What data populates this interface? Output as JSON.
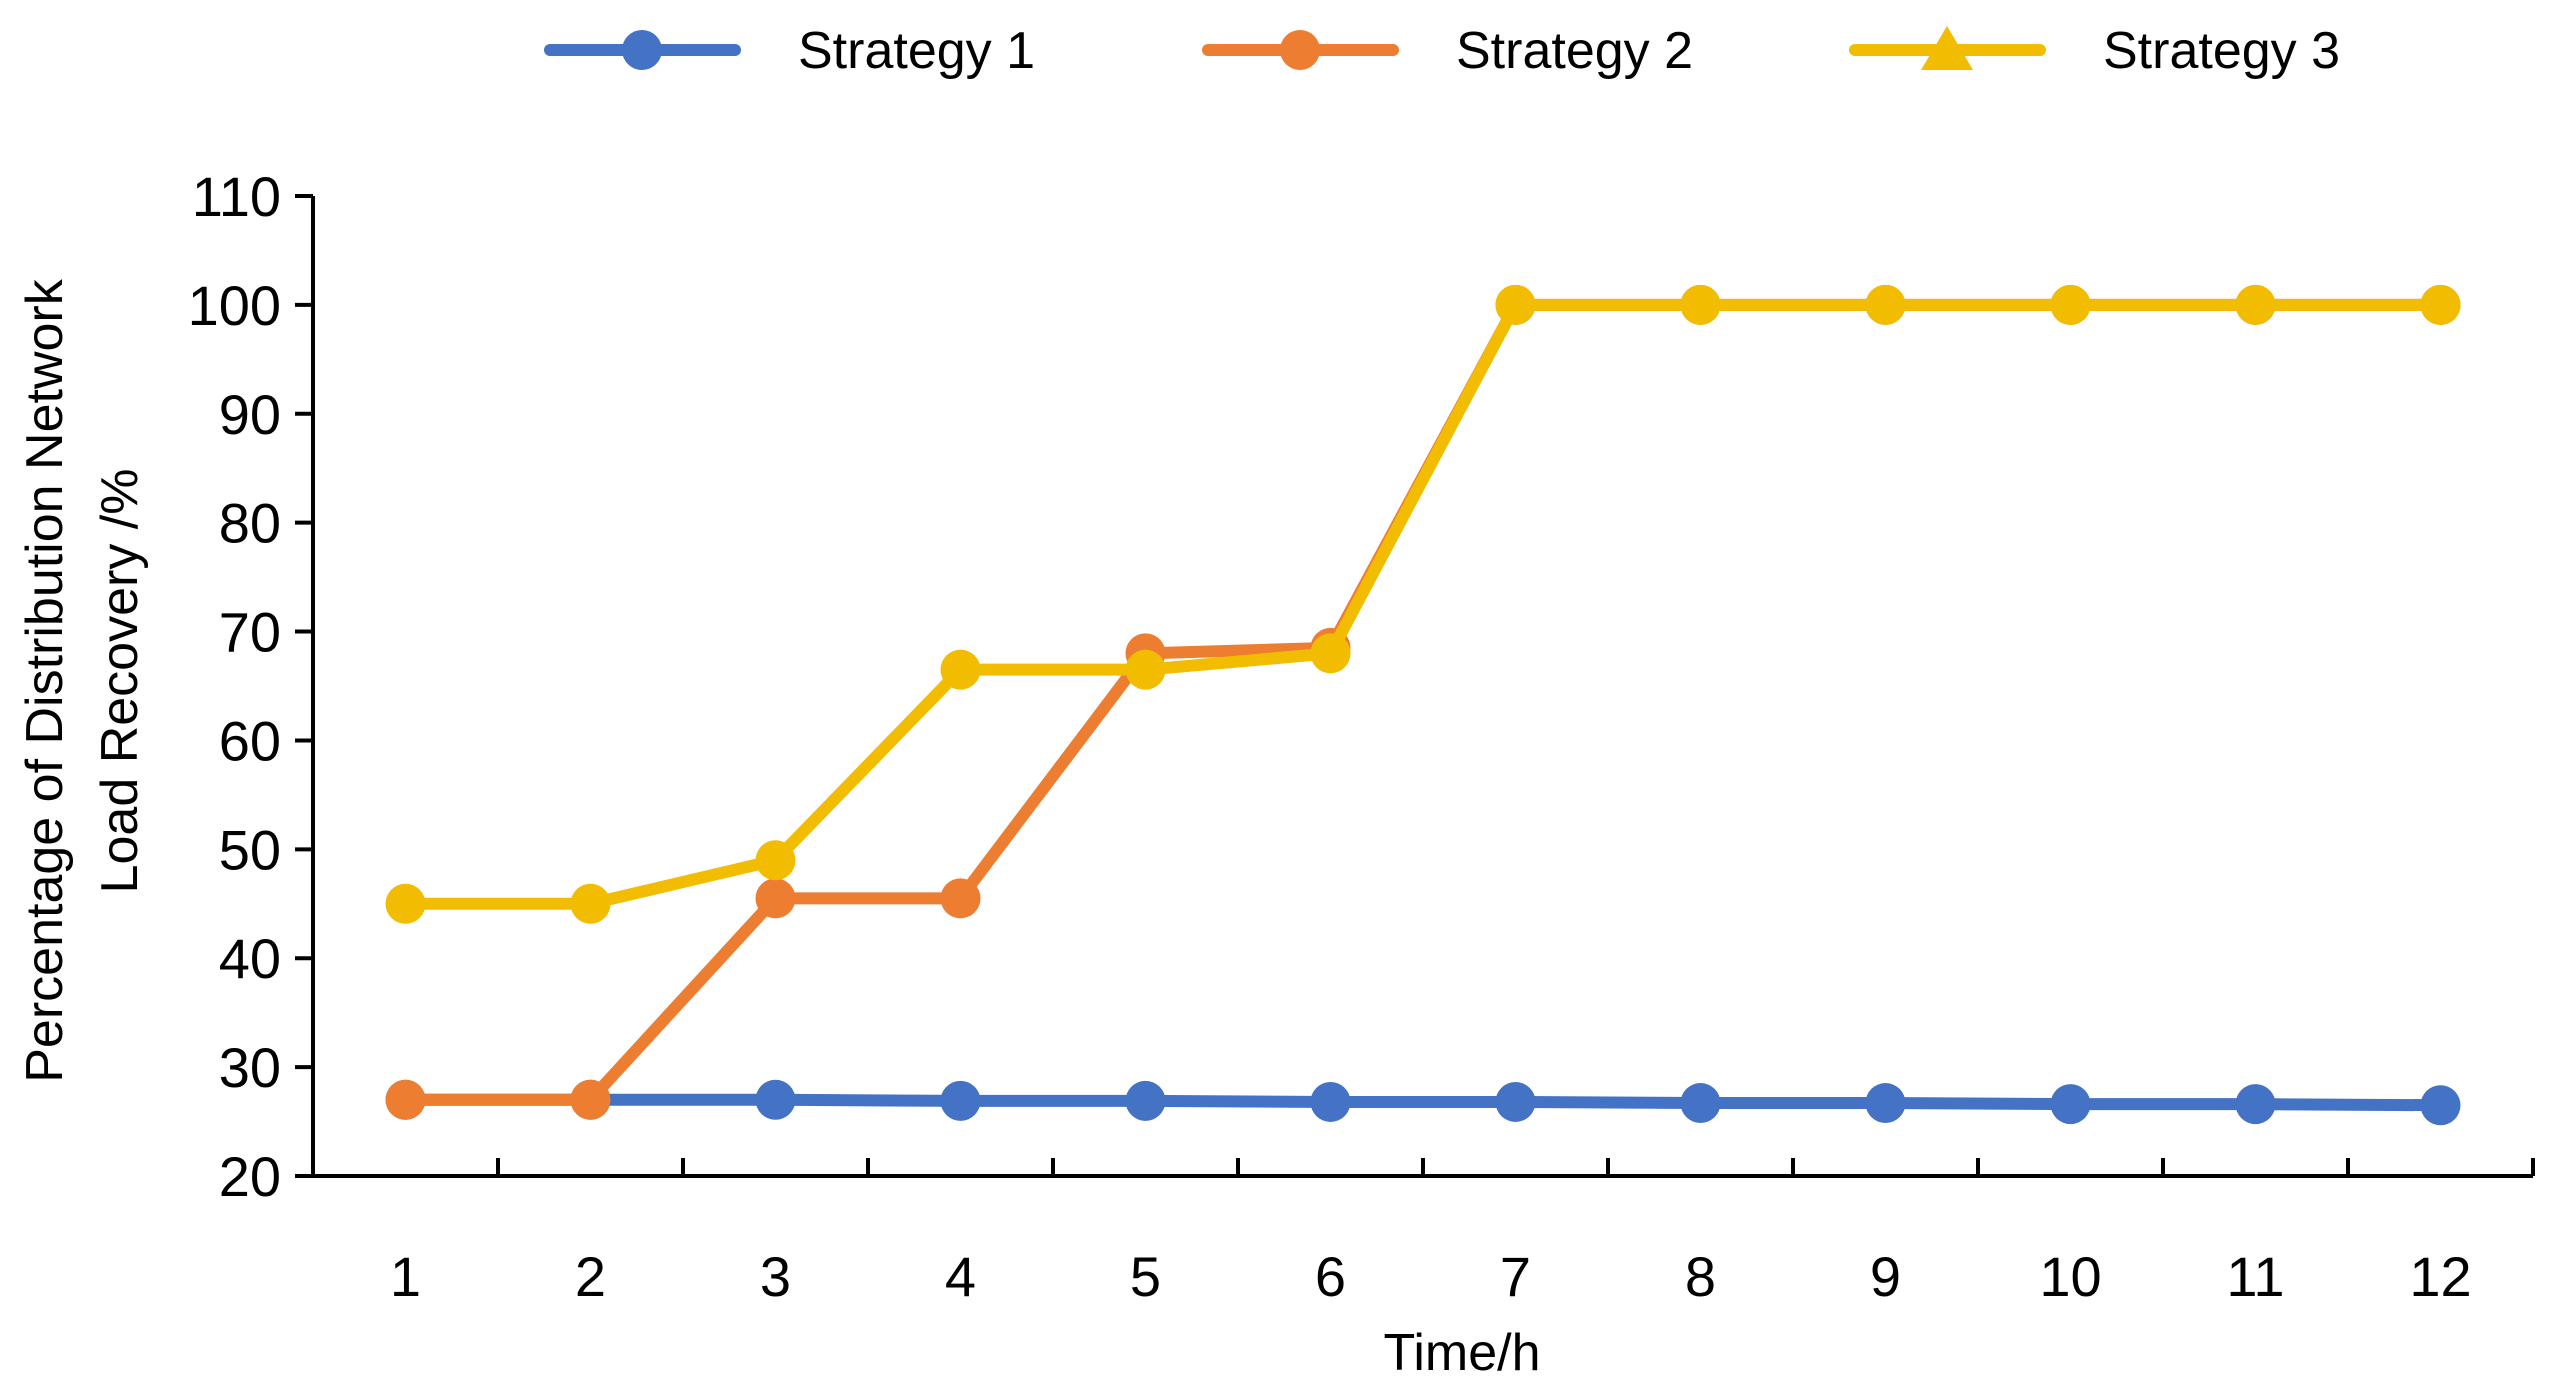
{
  "chart_data": {
    "type": "line",
    "xlabel": "Time/h",
    "ylabel_lines": [
      "Percentage of Distribution Network",
      "Load Recovery /%"
    ],
    "ylim": [
      20,
      110
    ],
    "y_ticks": [
      20,
      30,
      40,
      50,
      60,
      70,
      80,
      90,
      100,
      110
    ],
    "categories": [
      "1",
      "2",
      "3",
      "4",
      "5",
      "6",
      "7",
      "8",
      "9",
      "10",
      "11",
      "12"
    ],
    "legend_position": "top",
    "grid": false,
    "series": [
      {
        "name": "Strategy 1",
        "color": "#4472C4",
        "marker": "circle",
        "values": [
          27.0,
          27.0,
          27.0,
          26.9,
          26.9,
          26.8,
          26.8,
          26.7,
          26.7,
          26.6,
          26.6,
          26.5
        ]
      },
      {
        "name": "Strategy 2",
        "color": "#ED7D31",
        "marker": "circle",
        "values": [
          27.0,
          27.0,
          45.5,
          45.5,
          68.0,
          68.5,
          100,
          100,
          100,
          100,
          100,
          100
        ]
      },
      {
        "name": "Strategy 3",
        "color": "#F2BC00",
        "marker": "triangle",
        "values": [
          45.0,
          45.0,
          49.0,
          66.5,
          66.5,
          68.0,
          100,
          100,
          100,
          100,
          100,
          100
        ]
      }
    ]
  }
}
